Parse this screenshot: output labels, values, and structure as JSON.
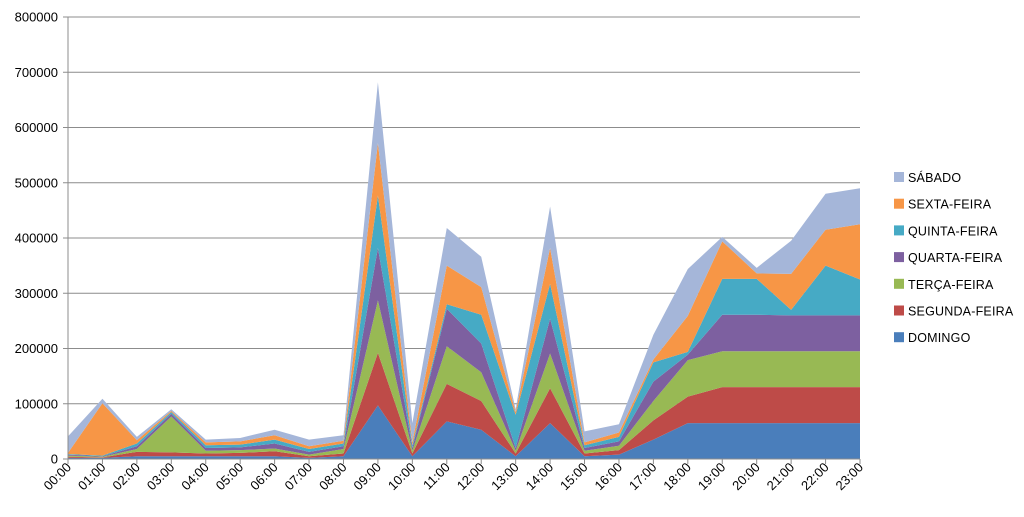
{
  "chart_data": {
    "type": "area",
    "stacked": true,
    "categories": [
      "00:00",
      "01:00",
      "02:00",
      "03:00",
      "04:00",
      "05:00",
      "06:00",
      "07:00",
      "08:00",
      "09:00",
      "10:00",
      "11:00",
      "12:00",
      "13:00",
      "14:00",
      "15:00",
      "16:00",
      "17:00",
      "18:00",
      "19:00",
      "20:00",
      "21:00",
      "22:00",
      "23:00"
    ],
    "ylim": [
      0,
      800000
    ],
    "yticks": [
      0,
      100000,
      200000,
      300000,
      400000,
      500000,
      600000,
      700000,
      800000
    ],
    "grid": true,
    "legend_position": "right",
    "series": [
      {
        "name": "DOMINGO",
        "color": "#4a7ebb",
        "values": [
          2000,
          2000,
          5000,
          5000,
          5000,
          5000,
          5000,
          2000,
          5000,
          97000,
          5000,
          68000,
          53000,
          5000,
          65000,
          5000,
          8000,
          35000,
          65000,
          65000,
          65000,
          65000,
          65000,
          65000
        ]
      },
      {
        "name": "SEGUNDA-FEIRA",
        "color": "#be4b48",
        "values": [
          2000,
          1000,
          8000,
          7000,
          5000,
          6000,
          9000,
          3000,
          5000,
          95000,
          5000,
          68000,
          52000,
          5000,
          63000,
          5000,
          8000,
          35000,
          48000,
          65000,
          65000,
          65000,
          65000,
          65000
        ]
      },
      {
        "name": "TERÇA-FEIRA",
        "color": "#98b954",
        "values": [
          2000,
          1000,
          5000,
          65000,
          5000,
          5000,
          5000,
          3000,
          8000,
          95000,
          5000,
          68000,
          52000,
          5000,
          63000,
          5000,
          8000,
          35000,
          66000,
          65000,
          65000,
          65000,
          65000,
          65000
        ]
      },
      {
        "name": "QUARTA-FEIRA",
        "color": "#7d60a0",
        "values": [
          2000,
          1000,
          5000,
          5000,
          5000,
          5000,
          9000,
          5000,
          5000,
          95000,
          5000,
          68000,
          52000,
          5000,
          63000,
          5000,
          8000,
          35000,
          10000,
          66000,
          66000,
          65000,
          65000,
          65000
        ]
      },
      {
        "name": "QUINTA-FEIRA",
        "color": "#46aac5",
        "values": [
          1000,
          1000,
          5000,
          3000,
          5000,
          5000,
          7000,
          5000,
          5000,
          95000,
          5000,
          8000,
          52000,
          60000,
          63000,
          5000,
          8000,
          35000,
          5000,
          65000,
          65000,
          10000,
          90000,
          65000
        ]
      },
      {
        "name": "SEXTA-FEIRA",
        "color": "#f79646",
        "values": [
          2000,
          95000,
          6000,
          2000,
          5000,
          6000,
          8000,
          5000,
          5000,
          95000,
          5000,
          70000,
          50000,
          5000,
          65000,
          5000,
          8000,
          5000,
          65000,
          68000,
          10000,
          65000,
          65000,
          100000
        ]
      },
      {
        "name": "SÁBADO",
        "color": "#a5b6d9",
        "values": [
          30000,
          8000,
          6000,
          3000,
          5000,
          6000,
          10000,
          12000,
          10000,
          110000,
          35000,
          68000,
          55000,
          5000,
          75000,
          20000,
          15000,
          45000,
          85000,
          8000,
          10000,
          60000,
          65000,
          65000
        ]
      }
    ]
  }
}
